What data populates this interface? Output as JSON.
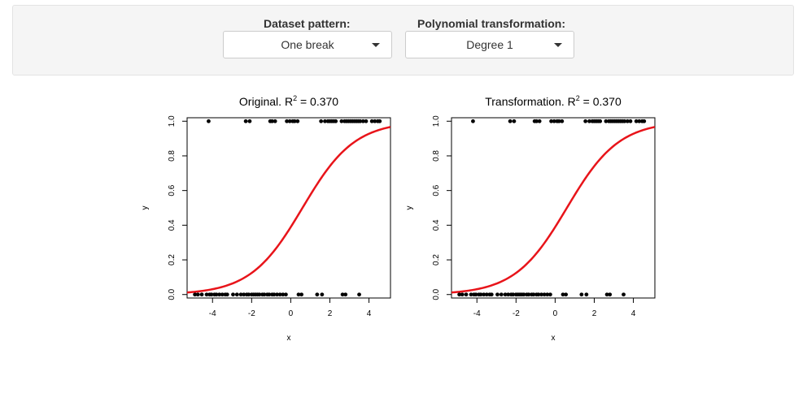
{
  "controls": {
    "dataset_label": "Dataset pattern:",
    "dataset_value": "One break",
    "poly_label": "Polynomial transformation:",
    "poly_value": "Degree 1"
  },
  "chart_data": [
    {
      "type": "scatter",
      "title_prefix": "Original. R",
      "title_sup": "2",
      "title_suffix": " = 0.370",
      "xlabel": "x",
      "ylabel": "y",
      "xlim": [
        -5.3,
        5.1
      ],
      "ylim": [
        -0.02,
        1.02
      ],
      "x_ticks": [
        "-4",
        "-2",
        "0",
        "2",
        "4"
      ],
      "y_ticks": [
        "0.0",
        "0.2",
        "0.4",
        "0.6",
        "0.8",
        "1.0"
      ],
      "curve": {
        "color": "#e8141a",
        "intercept": -0.45,
        "slope": 0.75
      },
      "series": [
        {
          "y": 0,
          "x": [
            -4.9,
            -4.75,
            -4.55,
            -4.3,
            -4.15,
            -4.05,
            -3.9,
            -3.8,
            -3.65,
            -3.5,
            -3.35,
            -3.25,
            -2.95,
            -2.75,
            -2.55,
            -2.4,
            -2.25,
            -2.15,
            -2.0,
            -1.9,
            -1.8,
            -1.7,
            -1.6,
            -1.45,
            -1.35,
            -1.2,
            -1.1,
            -0.95,
            -0.85,
            -0.7,
            -0.55,
            -0.4,
            -0.25,
            0.4,
            0.55,
            1.35,
            1.6,
            2.65,
            2.8,
            3.5
          ]
        },
        {
          "y": 1,
          "x": [
            -4.2,
            -2.3,
            -2.1,
            -1.05,
            -0.95,
            -0.8,
            -0.2,
            -0.05,
            0.1,
            0.2,
            0.35,
            1.55,
            1.75,
            1.9,
            2.0,
            2.1,
            2.2,
            2.3,
            2.6,
            2.75,
            2.85,
            2.95,
            3.05,
            3.15,
            3.25,
            3.35,
            3.45,
            3.55,
            3.7,
            3.85,
            4.15,
            4.3,
            4.45,
            4.55
          ]
        }
      ]
    },
    {
      "type": "scatter",
      "title_prefix": "Transformation. R",
      "title_sup": "2",
      "title_suffix": " = 0.370",
      "xlabel": "x",
      "ylabel": "y",
      "xlim": [
        -5.3,
        5.1
      ],
      "ylim": [
        -0.02,
        1.02
      ],
      "x_ticks": [
        "-4",
        "-2",
        "0",
        "2",
        "4"
      ],
      "y_ticks": [
        "0.0",
        "0.2",
        "0.4",
        "0.6",
        "0.8",
        "1.0"
      ],
      "curve": {
        "color": "#e8141a",
        "intercept": -0.45,
        "slope": 0.75
      },
      "series": [
        {
          "y": 0,
          "x": [
            -4.9,
            -4.75,
            -4.55,
            -4.3,
            -4.15,
            -4.05,
            -3.9,
            -3.8,
            -3.65,
            -3.5,
            -3.35,
            -3.25,
            -2.95,
            -2.75,
            -2.55,
            -2.4,
            -2.25,
            -2.15,
            -2.0,
            -1.9,
            -1.8,
            -1.7,
            -1.6,
            -1.45,
            -1.35,
            -1.2,
            -1.1,
            -0.95,
            -0.85,
            -0.7,
            -0.55,
            -0.4,
            -0.25,
            0.4,
            0.55,
            1.35,
            1.6,
            2.65,
            2.8,
            3.5
          ]
        },
        {
          "y": 1,
          "x": [
            -4.2,
            -2.3,
            -2.1,
            -1.05,
            -0.95,
            -0.8,
            -0.2,
            -0.05,
            0.1,
            0.2,
            0.35,
            1.55,
            1.75,
            1.9,
            2.0,
            2.1,
            2.2,
            2.3,
            2.6,
            2.75,
            2.85,
            2.95,
            3.05,
            3.15,
            3.25,
            3.35,
            3.45,
            3.55,
            3.7,
            3.85,
            4.15,
            4.3,
            4.45,
            4.55
          ]
        }
      ]
    }
  ]
}
